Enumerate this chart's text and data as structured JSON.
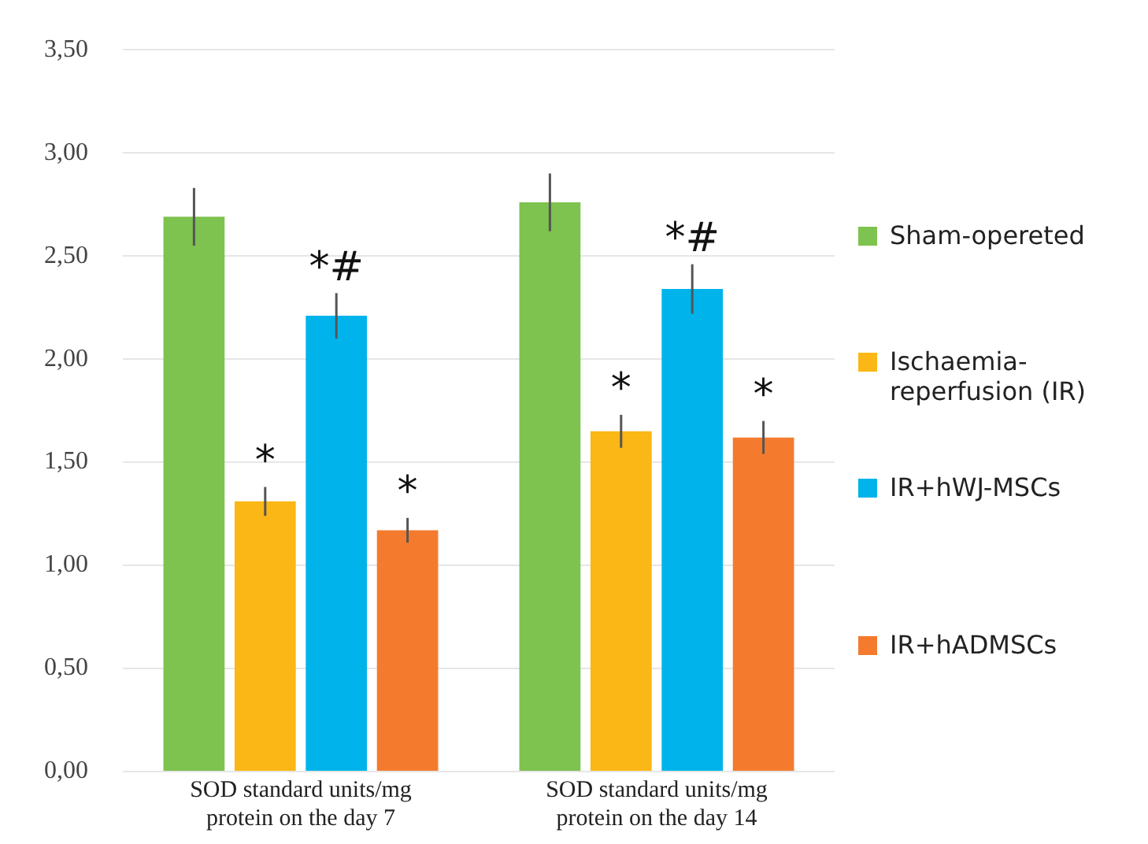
{
  "chart_data": {
    "type": "bar",
    "categories": [
      "SOD standard units/mg protein on the day 7",
      "SOD standard units/mg protein on the day 14"
    ],
    "series": [
      {
        "name": "Sham-opereted",
        "color": "#7ec24f",
        "values": [
          2.69,
          2.76
        ],
        "errors": [
          0.14,
          0.14
        ]
      },
      {
        "name": "Ischaemia-reperfusion (IR)",
        "color": "#fbb715",
        "values": [
          1.31,
          1.65
        ],
        "errors": [
          0.07,
          0.08
        ],
        "value_labels": [
          "*",
          "*"
        ]
      },
      {
        "name": "IR+hWJ-MSCs",
        "color": "#00b4eb",
        "values": [
          2.21,
          2.34
        ],
        "errors": [
          0.11,
          0.12
        ],
        "value_labels": [
          "*#",
          "*#"
        ]
      },
      {
        "name": "IR+hADMSCs",
        "color": "#f47b2e",
        "values": [
          1.17,
          1.62
        ],
        "errors": [
          0.06,
          0.08
        ],
        "value_labels": [
          "*",
          "*"
        ]
      }
    ],
    "ylim": [
      0,
      3.5
    ],
    "yticks": [
      {
        "value": 0,
        "label": "0,00"
      },
      {
        "value": 0.5,
        "label": "0,50"
      },
      {
        "value": 1,
        "label": "1,00"
      },
      {
        "value": 1.5,
        "label": "1,50"
      },
      {
        "value": 2,
        "label": "2,00"
      },
      {
        "value": 2.5,
        "label": "2,50"
      },
      {
        "value": 3,
        "label": "3,00"
      },
      {
        "value": 3.5,
        "label": "3,50"
      }
    ],
    "grid": "y",
    "legend": "right"
  }
}
